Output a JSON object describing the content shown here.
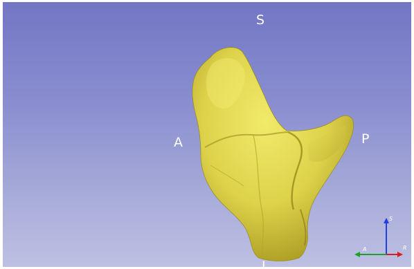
{
  "viewer": {
    "orientation_labels": {
      "superior": "S",
      "anterior": "A",
      "posterior": "P",
      "inferior": "I"
    },
    "axes": {
      "s": "S",
      "a": "A",
      "r": "R"
    }
  },
  "colors": {
    "model": "#e8df4e",
    "background_top": "#7276c4",
    "background_bottom": "#bdc0e3",
    "axis_s": "#1f3fe0",
    "axis_a": "#1fa02a",
    "axis_r": "#d81e1e"
  }
}
